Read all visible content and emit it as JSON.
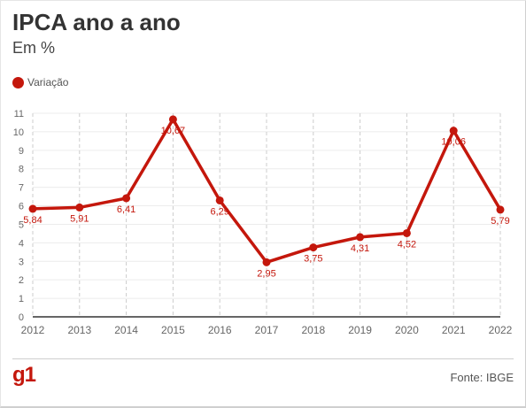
{
  "header": {
    "title": "IPCA ano a ano",
    "subtitle": "Em %"
  },
  "legend": {
    "label": "Variação",
    "color": "#c4170c"
  },
  "footer": {
    "logo": "g1",
    "logo_color": "#c4170c",
    "source": "Fonte: IBGE"
  },
  "chart_data": {
    "type": "line",
    "title": "IPCA ano a ano",
    "subtitle": "Em %",
    "xlabel": "",
    "ylabel": "",
    "x": [
      "2012",
      "2013",
      "2014",
      "2015",
      "2016",
      "2017",
      "2018",
      "2019",
      "2020",
      "2021",
      "2022"
    ],
    "y_ticks": [
      "0",
      "1",
      "2",
      "3",
      "4",
      "5",
      "6",
      "7",
      "8",
      "9",
      "10",
      "11"
    ],
    "ylim": [
      0,
      11
    ],
    "grid": true,
    "legend_position": "top-left",
    "series": [
      {
        "name": "Variação",
        "color": "#c4170c",
        "values": [
          5.84,
          5.91,
          6.41,
          10.67,
          6.29,
          2.95,
          3.75,
          4.31,
          4.52,
          10.06,
          5.79
        ],
        "labels": [
          "5,84",
          "5,91",
          "6,41",
          "10,67",
          "6,29",
          "2,95",
          "3,75",
          "4,31",
          "4,52",
          "10,06",
          "5,79"
        ]
      }
    ]
  }
}
